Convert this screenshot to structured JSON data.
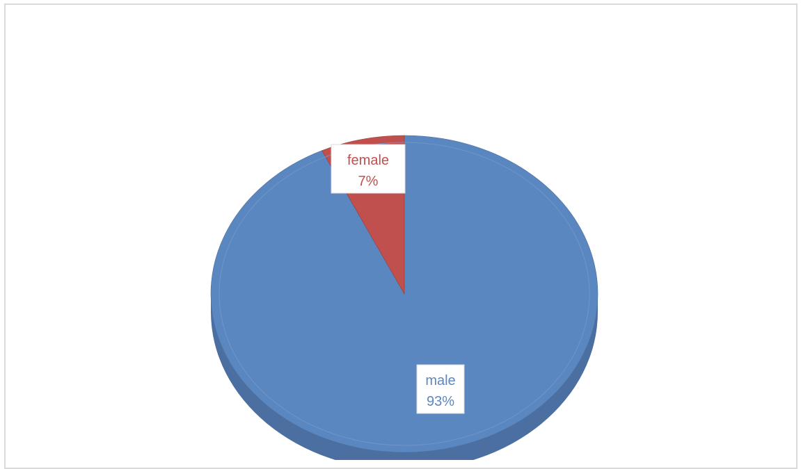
{
  "chart_data": {
    "type": "pie",
    "style": "3d",
    "title": "",
    "legend": "none",
    "slices": [
      {
        "label": "male",
        "value": 93,
        "percent_label": "93%",
        "color": "#5b87c0",
        "side_color": "#4a6fa0"
      },
      {
        "label": "female",
        "value": 7,
        "percent_label": "7%",
        "color": "#c0504d",
        "side_color": "#9a3d3a"
      }
    ]
  }
}
